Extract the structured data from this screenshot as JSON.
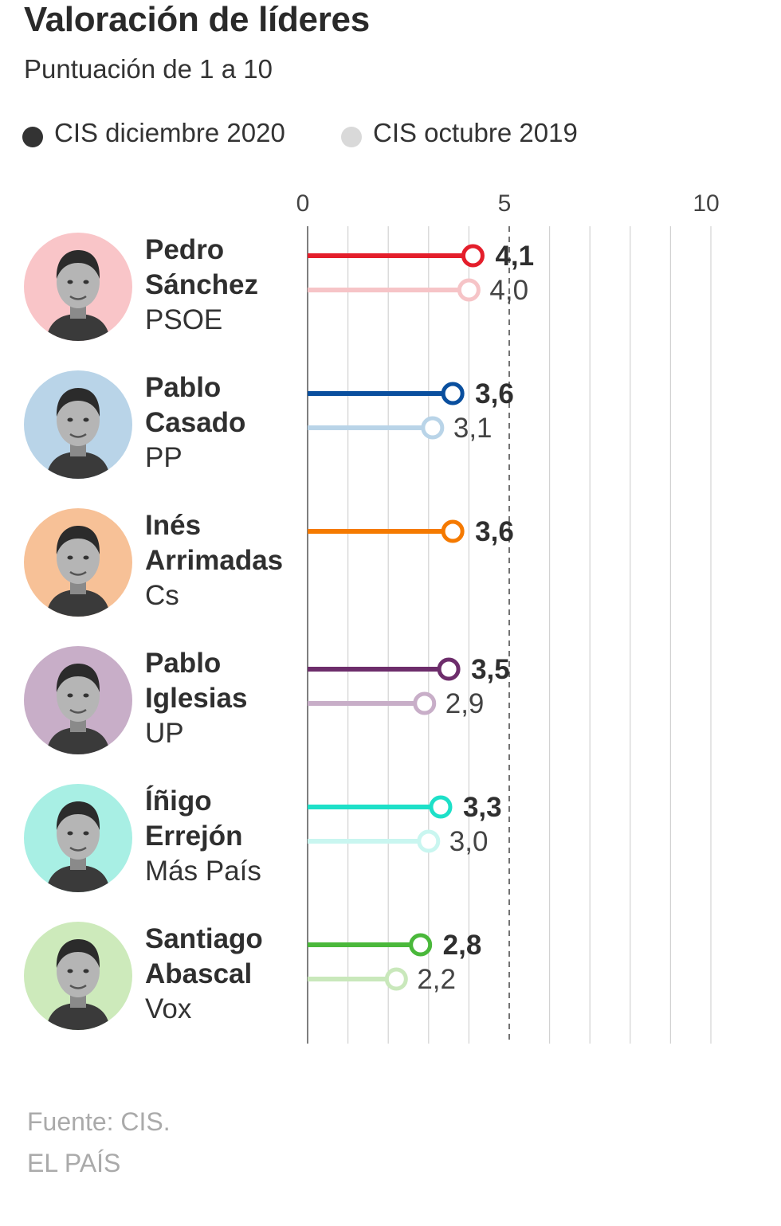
{
  "title": "Valoración de líderes",
  "subtitle": "Puntuación de 1 a 10",
  "legend": [
    {
      "label": "CIS diciembre 2020",
      "color": "#333333"
    },
    {
      "label": "CIS octubre 2019",
      "color": "#d9d9d9"
    }
  ],
  "leaders": [
    {
      "first": "Pedro",
      "last": "Sánchez",
      "party": "PSOE",
      "avatar_bg": "#f9c5c8",
      "icon": "pedro-sanchez-portrait-icon"
    },
    {
      "first": "Pablo",
      "last": "Casado",
      "party": "PP",
      "avatar_bg": "#b9d4e8",
      "icon": "pablo-casado-portrait-icon"
    },
    {
      "first": "Inés",
      "last": "Arrimadas",
      "party": "Cs",
      "avatar_bg": "#f7c197",
      "icon": "ines-arrimadas-portrait-icon"
    },
    {
      "first": "Pablo",
      "last": "Iglesias",
      "party": "UP",
      "avatar_bg": "#c8aec8",
      "icon": "pablo-iglesias-portrait-icon"
    },
    {
      "first": "Íñigo",
      "last": "Errejón",
      "party": "Más País",
      "avatar_bg": "#a8efe4",
      "icon": "inigo-errejon-portrait-icon"
    },
    {
      "first": "Santiago",
      "last": "Abascal",
      "party": "Vox",
      "avatar_bg": "#cdeabb",
      "icon": "santiago-abascal-portrait-icon"
    }
  ],
  "chart_data": {
    "type": "lollipop",
    "xlim": [
      0,
      10
    ],
    "xticks": [
      "0",
      "5",
      "10"
    ],
    "grid": true,
    "reference_line": 5,
    "series": [
      {
        "name": "CIS diciembre 2020",
        "values": [
          4.1,
          3.6,
          3.6,
          3.5,
          3.3,
          2.8
        ],
        "labels": [
          "4,1",
          "3,6",
          "3,6",
          "3,5",
          "3,3",
          "2,8"
        ],
        "colors": [
          "#e41e2b",
          "#0a4f9e",
          "#f57a00",
          "#6d2d6b",
          "#1de0c8",
          "#4ab83b"
        ]
      },
      {
        "name": "CIS octubre 2019",
        "values": [
          4.0,
          3.1,
          null,
          2.9,
          3.0,
          2.2
        ],
        "labels": [
          "4,0",
          "3,1",
          null,
          "2,9",
          "3,0",
          "2,2"
        ],
        "colors": [
          "#f6c4c7",
          "#b9d4e8",
          null,
          "#c8aec8",
          "#c9f6f0",
          "#c9e8bb"
        ]
      }
    ]
  },
  "footer": {
    "source": "Fuente: CIS.",
    "brand": "EL PAÍS"
  }
}
